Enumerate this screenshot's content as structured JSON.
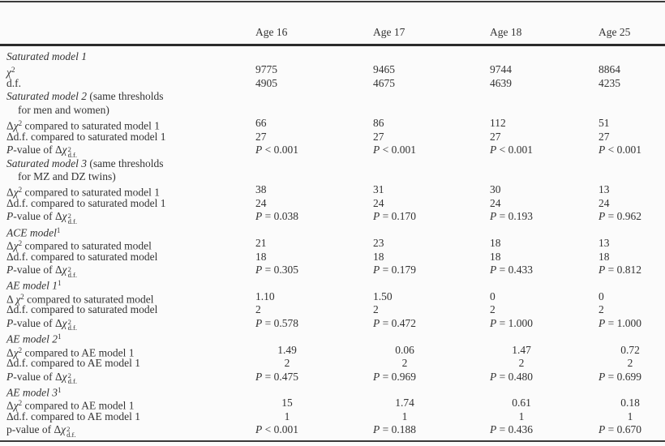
{
  "colors": {
    "background": "#fbfbfb",
    "text": "#333333",
    "rule": "#3a3a3a"
  },
  "table": {
    "columns": [
      "Age 16",
      "Age 17",
      "Age 18",
      "Age 25"
    ],
    "rows": [
      {
        "label": [
          {
            "s": "i",
            "t": "Saturated model 1"
          }
        ]
      },
      {
        "label": [
          {
            "s": "chi",
            "t": "χ"
          },
          {
            "s": "sup",
            "t": "2"
          }
        ],
        "cells": [
          "9775",
          "9465",
          "9744",
          "8864"
        ]
      },
      {
        "label": [
          {
            "s": "n",
            "t": "d.f."
          }
        ],
        "cells": [
          "4905",
          "4675",
          "4639",
          "4235"
        ]
      },
      {
        "label": [
          {
            "s": "i",
            "t": "Saturated model 2"
          },
          {
            "s": "n",
            "t": " (same thresholds"
          }
        ]
      },
      {
        "label": [
          {
            "s": "n",
            "t": "for men and women)"
          }
        ],
        "indent": true
      },
      {
        "label": [
          {
            "s": "n",
            "t": "Δ"
          },
          {
            "s": "chi",
            "t": "χ"
          },
          {
            "s": "sup",
            "t": "2"
          },
          {
            "s": "n",
            "t": " compared to saturated model 1"
          }
        ],
        "cells": [
          "66",
          "86",
          "112",
          "51"
        ]
      },
      {
        "label": [
          {
            "s": "n",
            "t": "Δd.f. compared to saturated model 1"
          }
        ],
        "cells": [
          "27",
          "27",
          "27",
          "27"
        ]
      },
      {
        "label": [
          {
            "s": "i",
            "t": "P"
          },
          {
            "s": "n",
            "t": "-value of Δ"
          },
          {
            "s": "chi",
            "t": "χ"
          },
          {
            "s": "supsub",
            "sup": "2",
            "sub": "d.f."
          }
        ],
        "cells": [
          "P < 0.001",
          "P < 0.001",
          "P < 0.001",
          "P < 0.001"
        ]
      },
      {
        "label": [
          {
            "s": "i",
            "t": "Saturated model 3"
          },
          {
            "s": "n",
            "t": " (same thresholds"
          }
        ]
      },
      {
        "label": [
          {
            "s": "n",
            "t": "for MZ and DZ twins)"
          }
        ],
        "indent": true
      },
      {
        "label": [
          {
            "s": "n",
            "t": "Δ"
          },
          {
            "s": "chi",
            "t": "χ"
          },
          {
            "s": "sup",
            "t": "2"
          },
          {
            "s": "n",
            "t": " compared to saturated model 1"
          }
        ],
        "cells": [
          "38",
          "31",
          "30",
          "13"
        ]
      },
      {
        "label": [
          {
            "s": "n",
            "t": "Δd.f. compared to saturated model 1"
          }
        ],
        "cells": [
          "24",
          "24",
          "24",
          "24"
        ]
      },
      {
        "label": [
          {
            "s": "i",
            "t": "P"
          },
          {
            "s": "n",
            "t": "-value of Δ"
          },
          {
            "s": "chi",
            "t": "χ"
          },
          {
            "s": "supsub",
            "sup": "2",
            "sub": "d.f."
          }
        ],
        "cells": [
          "P = 0.038",
          "P = 0.170",
          "P = 0.193",
          "P = 0.962"
        ]
      },
      {
        "label": [
          {
            "s": "i",
            "t": "ACE model"
          },
          {
            "s": "sup",
            "t": "1"
          }
        ]
      },
      {
        "label": [
          {
            "s": "n",
            "t": "Δ"
          },
          {
            "s": "chi",
            "t": "χ"
          },
          {
            "s": "sup",
            "t": "2"
          },
          {
            "s": "n",
            "t": " compared to saturated model"
          }
        ],
        "cells": [
          "21",
          "23",
          "18",
          "13"
        ]
      },
      {
        "label": [
          {
            "s": "n",
            "t": "Δd.f. compared to saturated model"
          }
        ],
        "cells": [
          "18",
          "18",
          "18",
          "18"
        ]
      },
      {
        "label": [
          {
            "s": "i",
            "t": "P"
          },
          {
            "s": "n",
            "t": "-value of Δ"
          },
          {
            "s": "chi",
            "t": "χ"
          },
          {
            "s": "supsub",
            "sup": "2",
            "sub": "d.f."
          }
        ],
        "cells": [
          "P = 0.305",
          "P = 0.179",
          "P = 0.433",
          "P = 0.812"
        ]
      },
      {
        "label": [
          {
            "s": "i",
            "t": "AE model 1"
          },
          {
            "s": "sup",
            "t": "1"
          }
        ]
      },
      {
        "label": [
          {
            "s": "n",
            "t": "Δ "
          },
          {
            "s": "chi",
            "t": "χ"
          },
          {
            "s": "sup",
            "t": "2"
          },
          {
            "s": "n",
            "t": " compared to saturated model"
          }
        ],
        "cells": [
          "1.10",
          "1.50",
          "0",
          "0"
        ]
      },
      {
        "label": [
          {
            "s": "n",
            "t": "Δd.f. compared to saturated model"
          }
        ],
        "cells": [
          "2",
          "2",
          "2",
          "2"
        ]
      },
      {
        "label": [
          {
            "s": "i",
            "t": "P"
          },
          {
            "s": "n",
            "t": "-value of Δ"
          },
          {
            "s": "chi",
            "t": "χ"
          },
          {
            "s": "supsub",
            "sup": "2",
            "sub": "d.f."
          }
        ],
        "cells": [
          "P = 0.578",
          "P = 0.472",
          "P = 1.000",
          "P = 1.000"
        ]
      },
      {
        "label": [
          {
            "s": "i",
            "t": "AE model 2"
          },
          {
            "s": "sup",
            "t": "1"
          }
        ]
      },
      {
        "label": [
          {
            "s": "n",
            "t": "Δ"
          },
          {
            "s": "chi",
            "t": "χ"
          },
          {
            "s": "sup",
            "t": "2"
          },
          {
            "s": "n",
            "t": " compared to AE model 1"
          }
        ],
        "shift": true,
        "cells": [
          "1.49",
          "0.06",
          "1.47",
          "0.72"
        ]
      },
      {
        "label": [
          {
            "s": "n",
            "t": "Δd.f. compared to AE model 1"
          }
        ],
        "shift": true,
        "cells": [
          "2",
          "2",
          "2",
          "2"
        ]
      },
      {
        "label": [
          {
            "s": "i",
            "t": "P"
          },
          {
            "s": "n",
            "t": "-value of Δ"
          },
          {
            "s": "chi",
            "t": "χ"
          },
          {
            "s": "supsub",
            "sup": "2",
            "sub": "d.f."
          }
        ],
        "cells": [
          "P = 0.475",
          "P = 0.969",
          "P = 0.480",
          "P = 0.699"
        ]
      },
      {
        "label": [
          {
            "s": "i",
            "t": "AE model 3"
          },
          {
            "s": "sup",
            "t": "1"
          }
        ]
      },
      {
        "label": [
          {
            "s": "n",
            "t": "Δ"
          },
          {
            "s": "chi",
            "t": "χ"
          },
          {
            "s": "sup",
            "t": "2"
          },
          {
            "s": "n",
            "t": " compared to AE model 1"
          }
        ],
        "shift": true,
        "cells": [
          "15",
          "1.74",
          "0.61",
          "0.18"
        ]
      },
      {
        "label": [
          {
            "s": "n",
            "t": "Δd.f. compared to AE model 1"
          }
        ],
        "shift": true,
        "cells": [
          "1",
          "1",
          "1",
          "1"
        ]
      },
      {
        "label": [
          {
            "s": "n",
            "t": "p-value of Δ"
          },
          {
            "s": "chi",
            "t": "χ"
          },
          {
            "s": "supsub",
            "sup": "2",
            "sub": "d.f."
          }
        ],
        "cells": [
          "P < 0.001",
          "P = 0.188",
          "P = 0.436",
          "P = 0.670"
        ]
      }
    ]
  }
}
